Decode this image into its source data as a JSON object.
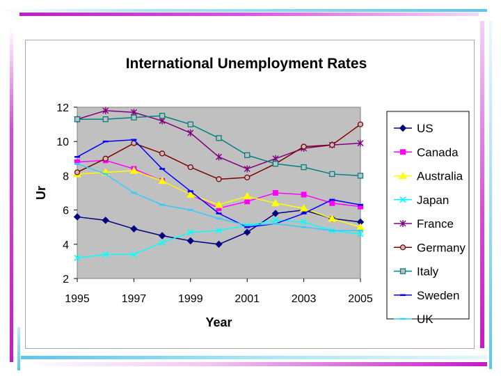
{
  "chart_data": {
    "type": "line",
    "title": "International Unemployment Rates",
    "xlabel": "Year",
    "ylabel": "Ur",
    "x": [
      1995,
      1996,
      1997,
      1998,
      1999,
      2000,
      2001,
      2002,
      2003,
      2004,
      2005
    ],
    "x_ticks": [
      "1995",
      "1997",
      "1999",
      "2001",
      "2003",
      "2005"
    ],
    "xlim": [
      1995,
      2005
    ],
    "y_ticks": [
      "2",
      "4",
      "6",
      "8",
      "10",
      "12"
    ],
    "ylim": [
      2,
      12
    ],
    "grid": false,
    "legend_position": "right",
    "series": [
      {
        "name": "US",
        "color": "#000080",
        "marker": "diamond",
        "values": [
          5.6,
          5.4,
          4.9,
          4.5,
          4.2,
          4.0,
          4.7,
          5.8,
          6.0,
          5.5,
          5.3
        ]
      },
      {
        "name": "Canada",
        "color": "#ff00ff",
        "marker": "square",
        "values": [
          8.8,
          8.9,
          8.4,
          7.7,
          6.9,
          6.1,
          6.5,
          7.0,
          6.9,
          6.4,
          6.2
        ]
      },
      {
        "name": "Australia",
        "color": "#ffff00",
        "marker": "triangle",
        "values": [
          8.1,
          8.2,
          8.3,
          7.7,
          6.9,
          6.3,
          6.8,
          6.4,
          6.1,
          5.5,
          5.0
        ]
      },
      {
        "name": "Japan",
        "color": "#00ffff",
        "marker": "x",
        "values": [
          3.2,
          3.4,
          3.4,
          4.1,
          4.7,
          4.8,
          5.1,
          5.4,
          5.3,
          4.8,
          4.6
        ]
      },
      {
        "name": "France",
        "color": "#800080",
        "marker": "star",
        "values": [
          11.3,
          11.8,
          11.7,
          11.2,
          10.5,
          9.1,
          8.4,
          9.0,
          9.6,
          9.8,
          9.9
        ]
      },
      {
        "name": "Germany",
        "color": "#800000",
        "marker": "circle",
        "values": [
          8.2,
          9.0,
          9.9,
          9.3,
          8.5,
          7.8,
          7.9,
          8.7,
          9.7,
          9.8,
          11.0
        ]
      },
      {
        "name": "Italy",
        "color": "#008080",
        "marker": "open-square",
        "values": [
          11.3,
          11.3,
          11.4,
          11.5,
          11.0,
          10.2,
          9.2,
          8.7,
          8.5,
          8.1,
          8.0
        ]
      },
      {
        "name": "Sweden",
        "color": "#0000ff",
        "marker": "dash",
        "values": [
          9.1,
          10.0,
          10.1,
          8.4,
          7.1,
          5.8,
          5.0,
          5.2,
          5.8,
          6.6,
          6.3
        ]
      },
      {
        "name": "UK",
        "color": "#33ccff",
        "marker": "dash",
        "values": [
          8.7,
          8.1,
          7.0,
          6.3,
          6.0,
          5.5,
          5.1,
          5.2,
          5.0,
          4.8,
          4.8
        ]
      }
    ]
  }
}
